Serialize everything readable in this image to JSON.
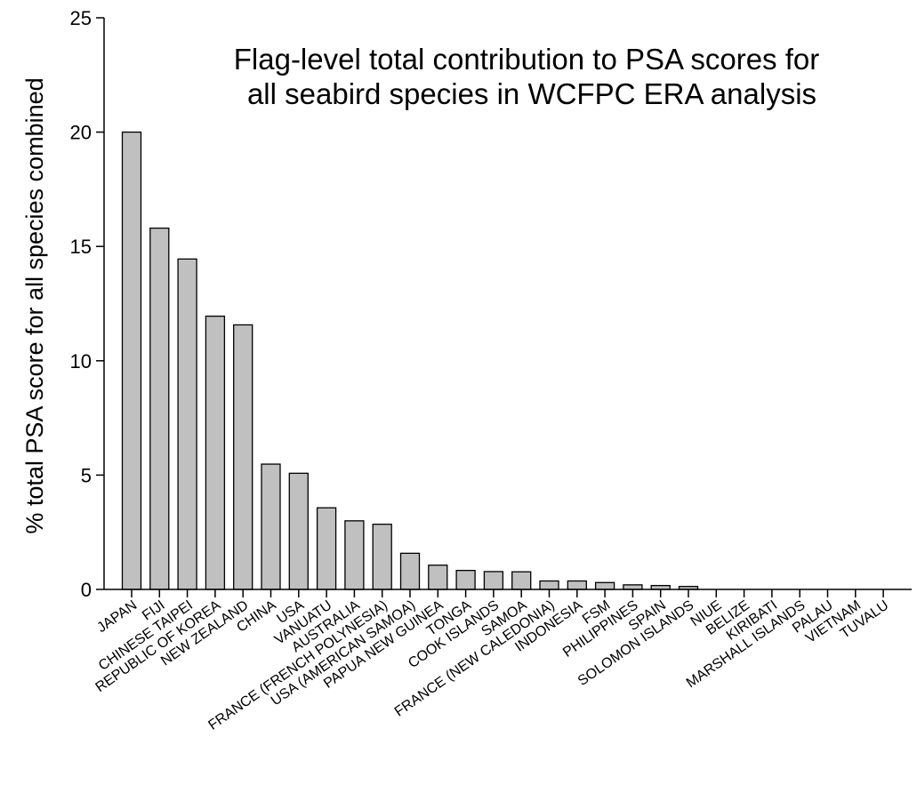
{
  "chart_data": {
    "type": "bar",
    "title_lines": [
      "Flag-level total contribution to PSA scores for",
      "all seabird species in WCFPC ERA analysis"
    ],
    "xlabel": "",
    "ylabel": "% total PSA score for all species combined",
    "ylim": [
      0,
      25
    ],
    "yticks": [
      "0",
      "5",
      "10",
      "15",
      "20",
      "25"
    ],
    "grid": false,
    "bar_color": "#c0c0c0",
    "categories": [
      "JAPAN",
      "FIJI",
      "CHINESE TAIPEI",
      "REPUBLIC OF KOREA",
      "NEW ZEALAND",
      "CHINA",
      "USA",
      "VANUATU",
      "AUSTRALIA",
      "FRANCE (FRENCH POLYNESIA)",
      "USA (AMERICAN SAMOA)",
      "PAPUA NEW GUINEA",
      "TONGA",
      "COOK ISLANDS",
      "SAMOA",
      "FRANCE (NEW CALEDONIA)",
      "INDONESIA",
      "FSM",
      "PHILIPPINES",
      "SPAIN",
      "SOLOMON ISLANDS",
      "NIUE",
      "BELIZE",
      "KIRIBATI",
      "MARSHALL ISLANDS",
      "PALAU",
      "VIETNAM",
      "TUVALU"
    ],
    "values": [
      20.0,
      15.8,
      14.45,
      11.95,
      11.57,
      5.48,
      5.08,
      3.57,
      3.0,
      2.85,
      1.58,
      1.06,
      0.83,
      0.78,
      0.77,
      0.37,
      0.37,
      0.3,
      0.2,
      0.17,
      0.13,
      0,
      0,
      0,
      0,
      0,
      0,
      0
    ]
  }
}
